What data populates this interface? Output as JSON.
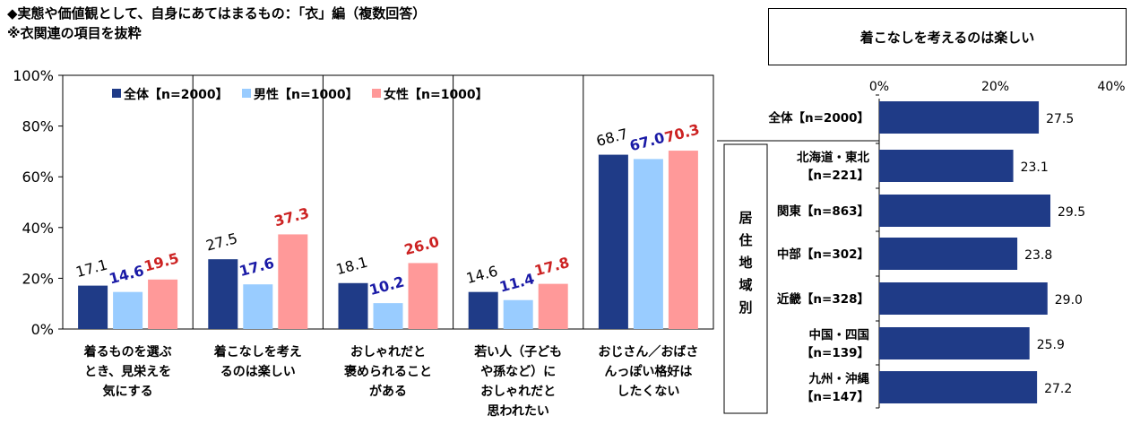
{
  "header": {
    "line1": "◆実態や価値観として、自身にあてはまるもの：「衣」編（複数回答）",
    "line2": "※衣関連の項目を抜粋"
  },
  "chart_data": [
    {
      "type": "bar",
      "categories": [
        [
          "着るものを選ぶ",
          "とき、見栄えを",
          "気にする"
        ],
        [
          "着こなしを考え",
          "るのは楽しい"
        ],
        [
          "おしゃれだと",
          "褒められること",
          "がある"
        ],
        [
          "若い人（子ども",
          "や孫など）に",
          "おしゃれだと",
          "思われたい"
        ],
        [
          "おじさん／おばさ",
          "んっぽい格好は",
          "したくない"
        ]
      ],
      "series": [
        {
          "name": "全体【n=2000】",
          "color": "#1f3b87",
          "label_color": "#000000",
          "values": [
            17.1,
            27.5,
            18.1,
            14.6,
            68.7
          ]
        },
        {
          "name": "男性【n=1000】",
          "color": "#99ccff",
          "label_color": "#1a1aa6",
          "values": [
            14.6,
            17.6,
            10.2,
            11.4,
            67.0
          ]
        },
        {
          "name": "女性【n=1000】",
          "color": "#ff9999",
          "label_color": "#cc2222",
          "values": [
            19.5,
            37.3,
            26.0,
            17.8,
            70.3
          ]
        }
      ],
      "yticks": [
        "0%",
        "20%",
        "40%",
        "60%",
        "80%",
        "100%"
      ],
      "ylim": [
        0,
        100
      ],
      "legend": "top"
    },
    {
      "type": "bar",
      "orientation": "horizontal",
      "title": "着こなしを考えるのは楽しい",
      "xticks": [
        "0%",
        "20%",
        "40%"
      ],
      "xlim": [
        0,
        40
      ],
      "bar_color": "#1f3b87",
      "group_label": [
        "居",
        "住",
        "地",
        "域",
        "別"
      ],
      "categories": [
        [
          "全体【n=2000】"
        ],
        [
          "北海道・東北",
          "【n=221】"
        ],
        [
          "関東【n=863】"
        ],
        [
          "中部【n=302】"
        ],
        [
          "近畿【n=328】"
        ],
        [
          "中国・四国",
          "【n=139】"
        ],
        [
          "九州・沖縄",
          "【n=147】"
        ]
      ],
      "values": [
        27.5,
        23.1,
        29.5,
        23.8,
        29.0,
        25.9,
        27.2
      ]
    }
  ]
}
